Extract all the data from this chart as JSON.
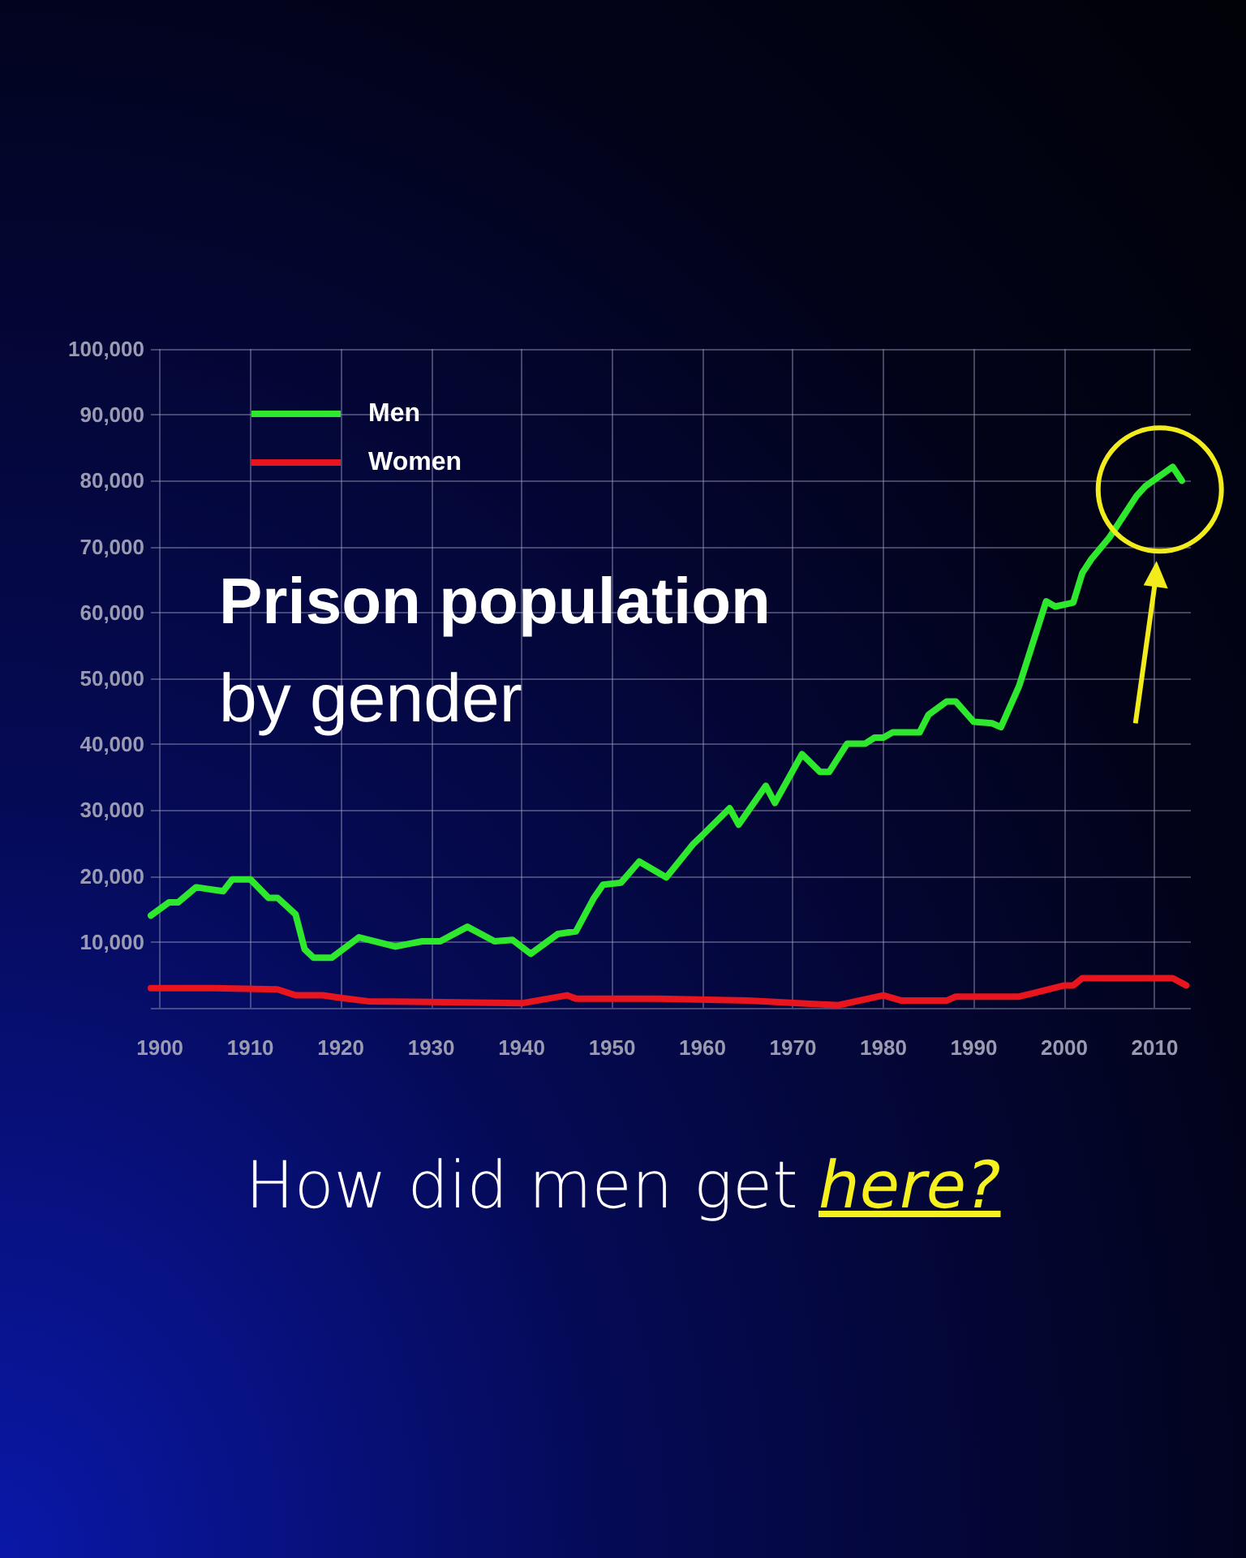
{
  "chart_data": {
    "type": "line",
    "title": "Prison population",
    "subtitle": "by gender",
    "xlim": [
      1899,
      2014
    ],
    "xticks": [
      1900,
      1910,
      1920,
      1930,
      1940,
      1950,
      1960,
      1970,
      1980,
      1990,
      2000,
      2010
    ],
    "ylim": [
      0,
      100000
    ],
    "yticks": [
      {
        "value": 0,
        "label": null
      },
      {
        "value": 10000,
        "label": "10,000"
      },
      {
        "value": 20000,
        "label": "20,000"
      },
      {
        "value": 30000,
        "label": "30,000"
      },
      {
        "value": 40000,
        "label": "40,000"
      },
      {
        "value": 50000,
        "label": "50,000"
      },
      {
        "value": 60000,
        "label": "60,000"
      },
      {
        "value": 70000,
        "label": "70,000"
      },
      {
        "value": 80000,
        "label": "80,000"
      },
      {
        "value": 90000,
        "label": "90,000"
      },
      {
        "value": 100000,
        "label": "100,000"
      }
    ],
    "grid": true,
    "legend": "top left",
    "marker": "none",
    "line_style": "solid",
    "annotations": [
      "How did men get here?"
    ],
    "series": [
      {
        "name": "Men",
        "color": "#2ee82e",
        "x": [
          1899,
          1901,
          1902,
          1904,
          1907,
          1908,
          1910,
          1912,
          1913,
          1915,
          1916,
          1917,
          1919,
          1922,
          1926,
          1929,
          1931,
          1934,
          1937,
          1939,
          1941,
          1944,
          1946,
          1948,
          1949,
          1951,
          1953,
          1956,
          1959,
          1960,
          1963,
          1964,
          1967,
          1968,
          1971,
          1973,
          1974,
          1976,
          1978,
          1979,
          1980,
          1981,
          1984,
          1985,
          1987,
          1988,
          1990,
          1992,
          1993,
          1995,
          1998,
          1999,
          2001,
          2002,
          2003,
          2005,
          2008,
          2009,
          2012,
          2013
        ],
        "values": [
          14000,
          16000,
          16000,
          18300,
          17700,
          19500,
          19500,
          16700,
          16700,
          14200,
          8900,
          7600,
          7600,
          10700,
          9300,
          10100,
          10100,
          12300,
          10100,
          10300,
          8200,
          11200,
          11600,
          16700,
          18700,
          19000,
          22200,
          19800,
          24900,
          26200,
          30300,
          27800,
          33700,
          31100,
          38500,
          35800,
          35800,
          40100,
          40100,
          41000,
          41000,
          41800,
          41800,
          44500,
          46500,
          46500,
          43400,
          43200,
          42600,
          48800,
          61700,
          60900,
          61500,
          66000,
          68100,
          71400,
          77700,
          79200,
          82100,
          80000
        ]
      },
      {
        "name": "Women",
        "color": "#e8141e",
        "x": [
          1899,
          1906,
          1913,
          1915,
          1918,
          1920,
          1923,
          1940,
          1945,
          1946,
          1955,
          1965,
          1975,
          1980,
          1982,
          1987,
          1988,
          1995,
          2000,
          2001,
          2002,
          2012,
          2013.5
        ],
        "values": [
          3000,
          3000,
          2800,
          1900,
          1900,
          1500,
          1000,
          700,
          1900,
          1400,
          1400,
          1100,
          400,
          1900,
          1100,
          1100,
          1700,
          1700,
          3400,
          3400,
          4500,
          4500,
          3400
        ]
      }
    ]
  }
}
